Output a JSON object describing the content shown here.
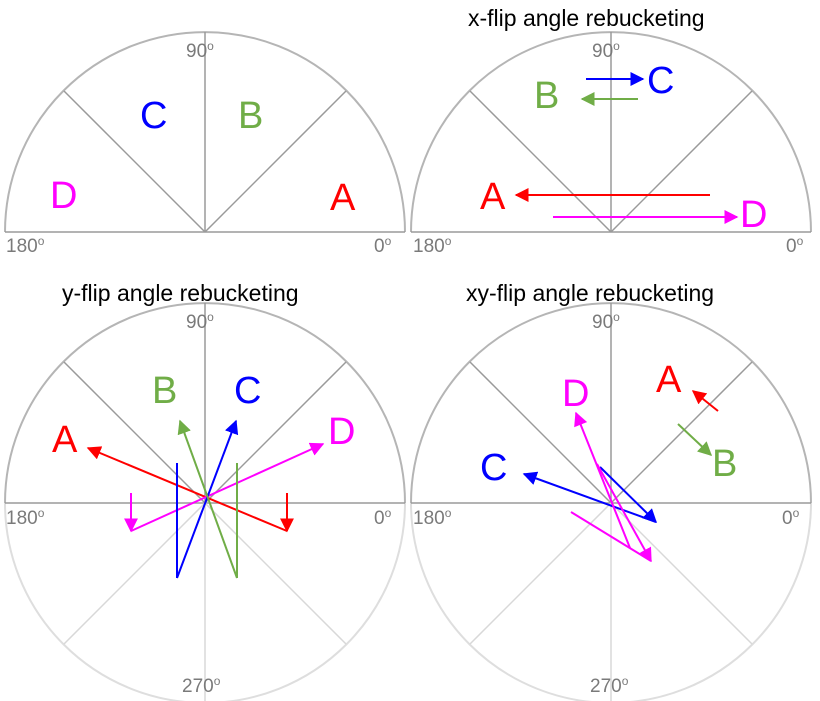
{
  "colors": {
    "A": "#ff0000",
    "B": "#70ad47",
    "C": "#0000ff",
    "D": "#ff00ff",
    "grid": "#9a9a9a",
    "deg_text": "#7a7a7a"
  },
  "panels": [
    {
      "title": "",
      "labels": [
        "A",
        "B",
        "C",
        "D"
      ],
      "deg_left": "180",
      "deg_right": "0",
      "deg_top": "90",
      "deg_bottom": ""
    },
    {
      "title": "x-flip angle rebucketing",
      "labels": [
        "A",
        "B",
        "C",
        "D"
      ],
      "deg_left": "180",
      "deg_right": "0",
      "deg_top": "90",
      "deg_bottom": ""
    },
    {
      "title": "y-flip angle rebucketing",
      "labels": [
        "A",
        "B",
        "C",
        "D"
      ],
      "deg_left": "180",
      "deg_right": "0",
      "deg_top": "90",
      "deg_bottom": "270"
    },
    {
      "title": "xy-flip angle rebucketing",
      "labels": [
        "A",
        "B",
        "C",
        "D"
      ],
      "deg_left": "180",
      "deg_right": "0",
      "deg_top": "90",
      "deg_bottom": "270"
    }
  ],
  "deg_symbol": "o"
}
